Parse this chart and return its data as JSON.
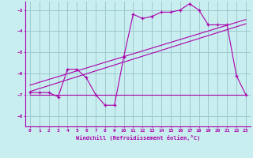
{
  "xlabel": "Windchill (Refroidissement éolien,°C)",
  "background_color": "#c8eef0",
  "grid_color": "#a0c8d0",
  "line_color": "#aa00aa",
  "x_data": [
    0,
    1,
    2,
    3,
    4,
    5,
    6,
    7,
    8,
    9,
    10,
    11,
    12,
    13,
    14,
    15,
    16,
    17,
    18,
    19,
    20,
    21,
    22,
    23
  ],
  "y_main": [
    -6.9,
    -6.9,
    -6.9,
    -7.1,
    -5.8,
    -5.8,
    -6.2,
    -7.0,
    -7.5,
    -7.5,
    -5.2,
    -3.2,
    -3.4,
    -3.3,
    -3.1,
    -3.1,
    -3.0,
    -2.7,
    -3.0,
    -3.7,
    -3.7,
    -3.7,
    -6.1,
    -7.0
  ],
  "y_flat": [
    -7.0,
    -7.0,
    -7.0,
    -7.0,
    -7.0,
    -7.0,
    -7.0,
    -7.0,
    -7.0,
    -7.0,
    -7.0,
    -7.0,
    -7.0,
    -7.0,
    -7.0,
    -7.0,
    -7.0,
    -7.0,
    -7.0,
    -7.0,
    -7.0,
    -7.0,
    -7.0,
    -7.0
  ],
  "trend1_x": [
    0,
    23
  ],
  "trend1_y": [
    -6.85,
    -3.65
  ],
  "trend2_x": [
    0,
    23
  ],
  "trend2_y": [
    -6.55,
    -3.45
  ],
  "xlim": [
    -0.5,
    23.5
  ],
  "ylim": [
    -8.5,
    -2.6
  ],
  "yticks": [
    -8,
    -7,
    -6,
    -5,
    -4,
    -3
  ],
  "xticks": [
    0,
    1,
    2,
    3,
    4,
    5,
    6,
    7,
    8,
    9,
    10,
    11,
    12,
    13,
    14,
    15,
    16,
    17,
    18,
    19,
    20,
    21,
    22,
    23
  ]
}
